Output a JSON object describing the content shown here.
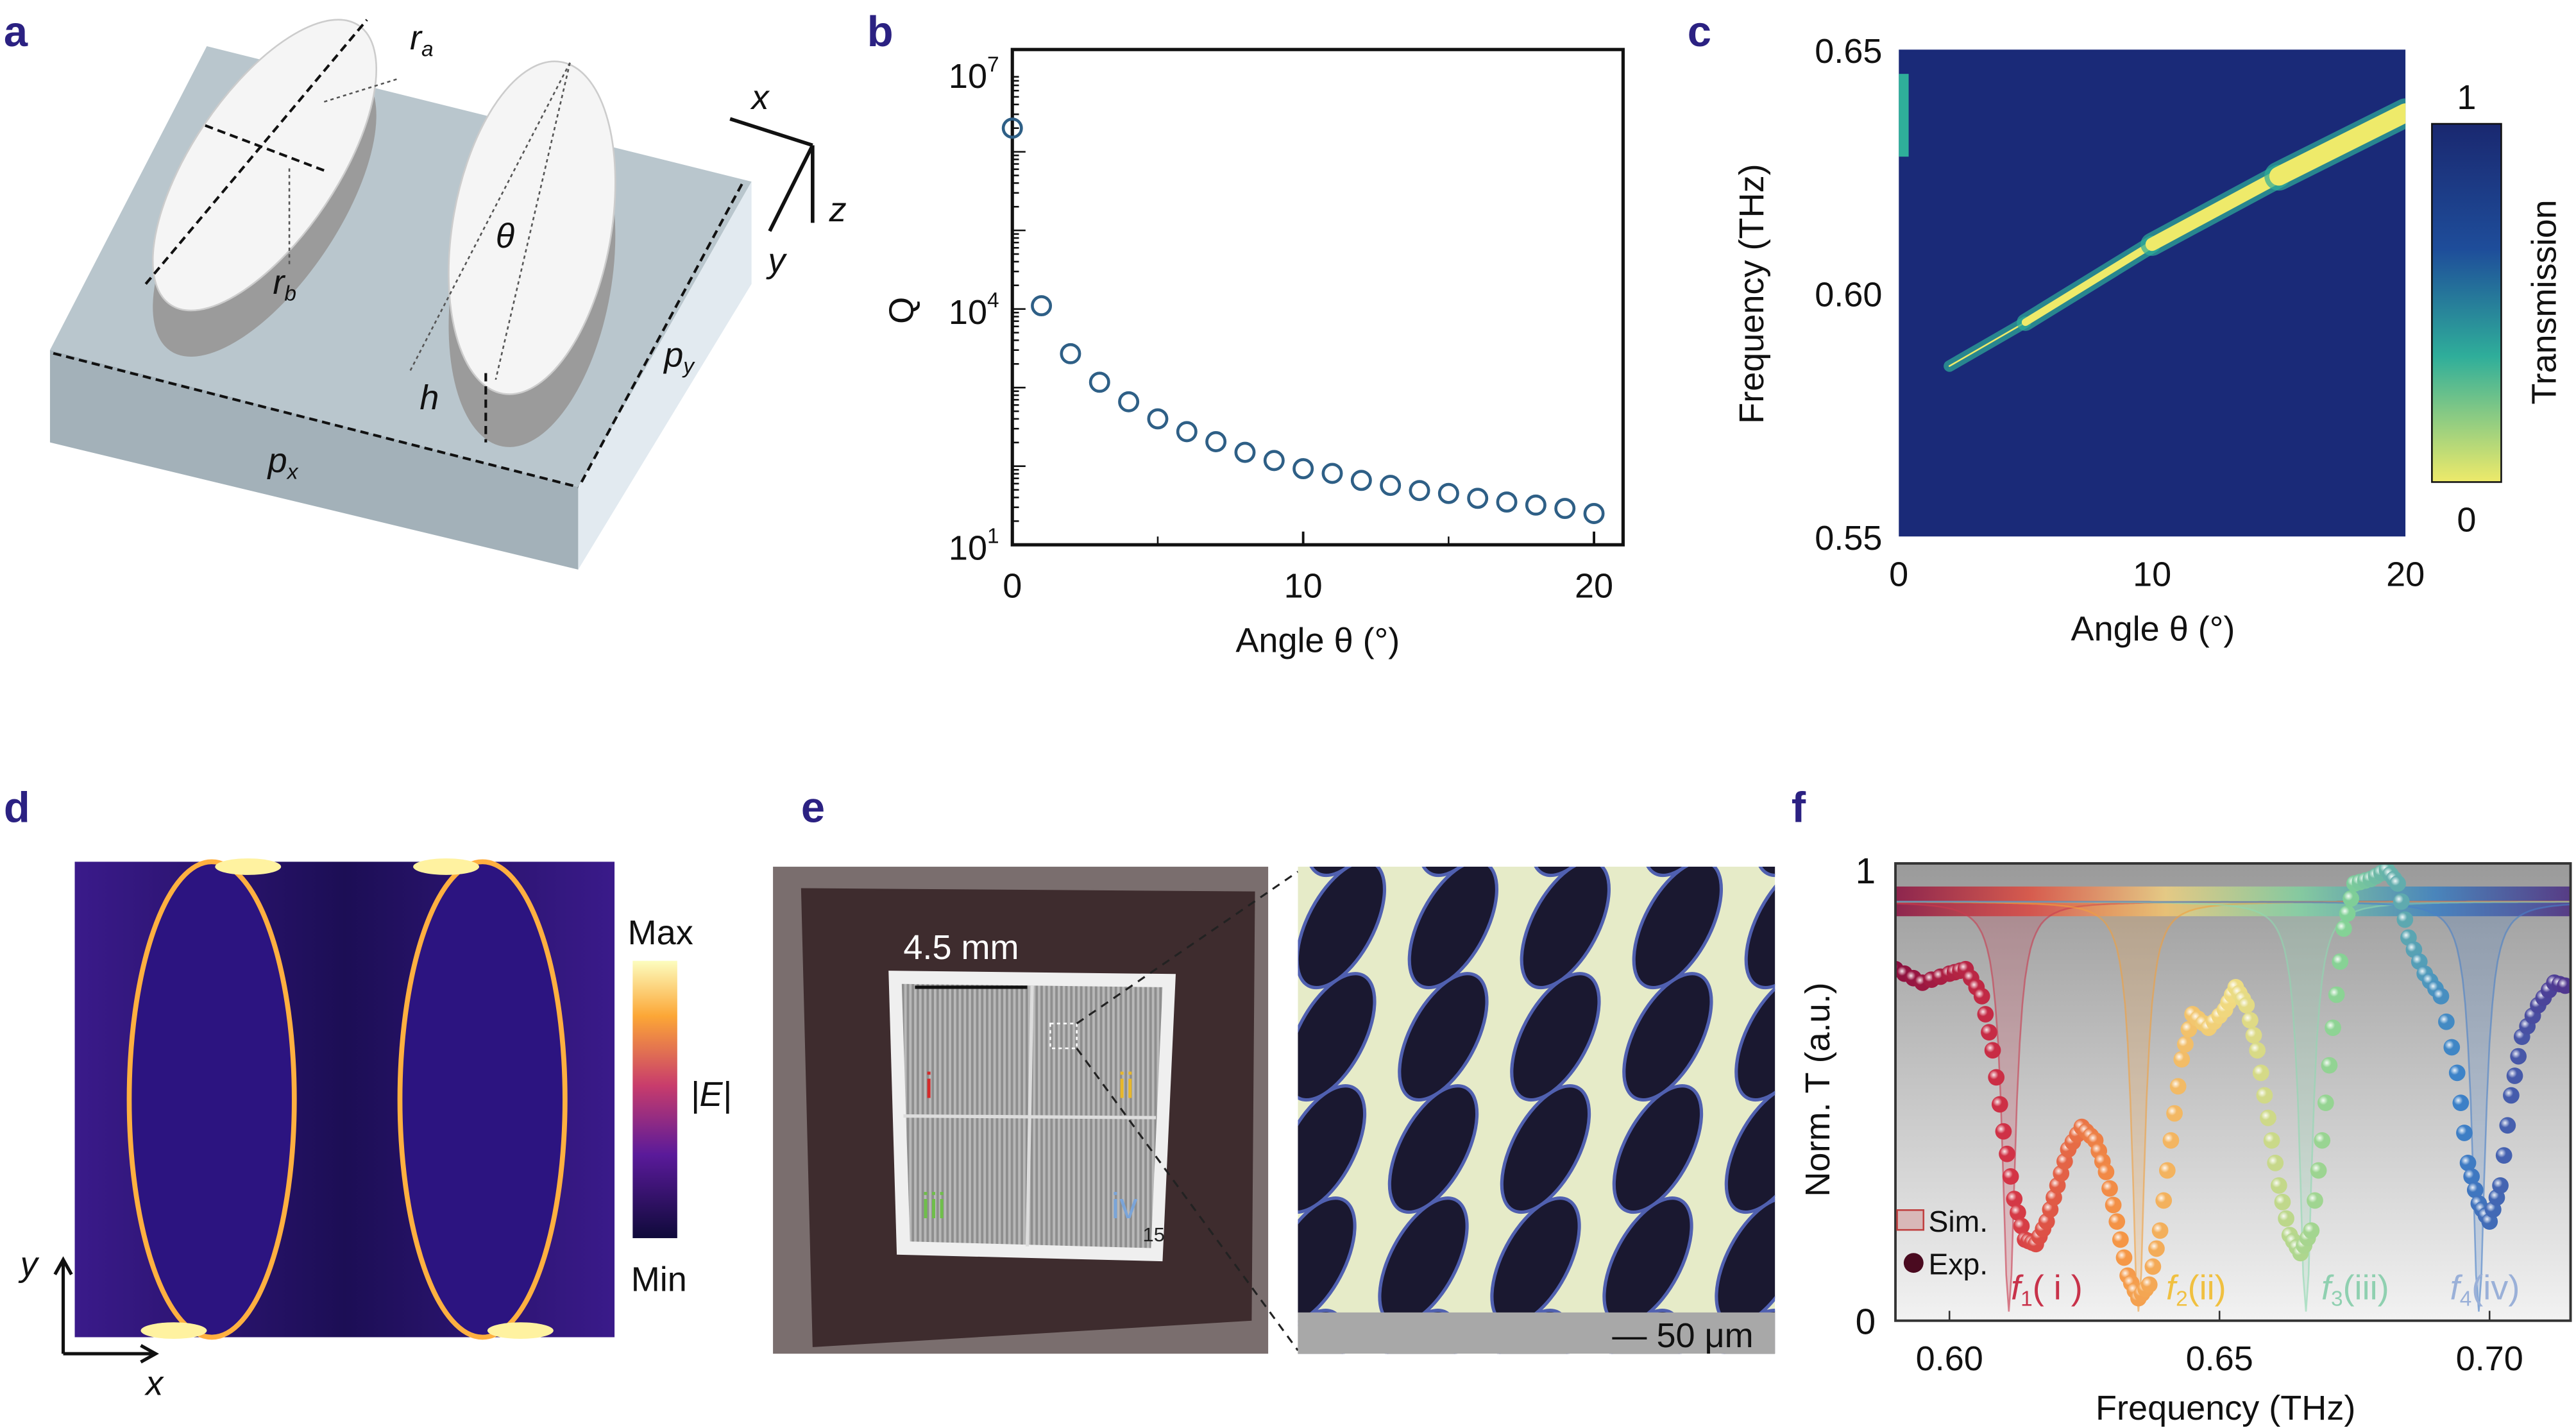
{
  "panels": {
    "a": {
      "label": "a",
      "ra": "r",
      "ra_sub": "a",
      "rb": "r",
      "rb_sub": "b",
      "theta": "θ",
      "h": "h",
      "px": "p",
      "px_sub": "x",
      "py": "p",
      "py_sub": "y",
      "axis_x": "x",
      "axis_y": "y",
      "axis_z": "z"
    },
    "b": {
      "label": "b"
    },
    "c": {
      "label": "c"
    },
    "d": {
      "label": "d",
      "cbar_max": "Max",
      "cbar_mid": "|E|",
      "cbar_min": "Min",
      "axis_x": "x",
      "axis_y": "y"
    },
    "e": {
      "label": "e",
      "size_label": "4.5 mm",
      "region_i": "i",
      "region_ii": "ii",
      "region_iii": "iii",
      "region_iv": "iv",
      "sample_number": "15",
      "scalebar": "— 50 μm",
      "region_colors": {
        "i": "#d42a2a",
        "ii": "#e8b82a",
        "iii": "#6fbf4a",
        "iv": "#7aa4d8"
      }
    },
    "f": {
      "label": "f",
      "legend_sim": "Sim.",
      "legend_exp": "Exp.",
      "modes": [
        {
          "f": "f",
          "sub": "1",
          "roman": "( i )",
          "color": "#c8324a"
        },
        {
          "f": "f",
          "sub": "2",
          "roman": "(ii)",
          "color": "#f0c040"
        },
        {
          "f": "f",
          "sub": "3",
          "roman": "(iii)",
          "color": "#8fd0b0"
        },
        {
          "f": "f",
          "sub": "4",
          "roman": "(iv)",
          "color": "#9ab0d8"
        }
      ]
    }
  },
  "chart_data": [
    {
      "panel": "b",
      "type": "scatter",
      "xlabel": "Angle θ (°)",
      "ylabel": "Q",
      "xlim": [
        0,
        21
      ],
      "ylim": [
        10,
        20000000
      ],
      "yscale": "log",
      "xticks": [
        "0",
        "10",
        "20"
      ],
      "yticks": [
        {
          "base": "10",
          "exp": "7"
        },
        {
          "base": "10",
          "exp": "4"
        },
        {
          "base": "10",
          "exp": "1"
        }
      ],
      "marker": "open-circle",
      "color": "#2e5f86",
      "x": [
        0,
        1,
        2,
        3,
        4,
        5,
        6,
        7,
        8,
        9,
        10,
        11,
        12,
        13,
        14,
        15,
        16,
        17,
        18,
        19,
        20
      ],
      "y": [
        2000000,
        11000,
        2700,
        1170,
        660,
        400,
        275,
        205,
        150,
        118,
        93,
        81,
        66,
        57,
        49,
        45,
        39,
        35,
        32,
        29,
        25
      ]
    },
    {
      "panel": "c",
      "type": "heatmap",
      "xlabel": "Angle θ (°)",
      "ylabel": "Frequency (THz)",
      "xlim": [
        0,
        20
      ],
      "ylim": [
        0.55,
        0.65
      ],
      "xticks": [
        "0",
        "10",
        "20"
      ],
      "yticks": [
        "0.55",
        "0.60",
        "0.65"
      ],
      "colorbar": {
        "label": "Transmission",
        "max": "1",
        "min": "0",
        "colors": [
          "#e8e86a",
          "#3fbf9a",
          "#1a5aa0",
          "#1a2870"
        ]
      },
      "background_value": 1,
      "resonance_band": {
        "angle": [
          2,
          5,
          10,
          15,
          20
        ],
        "frequency": [
          0.585,
          0.594,
          0.61,
          0.624,
          0.637
        ],
        "value": 0
      },
      "edge_feature": {
        "angle": 0,
        "frequency": 0.64
      }
    },
    {
      "panel": "f",
      "type": "line",
      "xlabel": "Frequency (THz)",
      "ylabel": "Norm. T (a.u.)",
      "xlim": [
        0.59,
        0.715
      ],
      "ylim": [
        0,
        1
      ],
      "xticks": [
        "0.60",
        "0.65",
        "0.70"
      ],
      "yticks": [
        "0",
        "1"
      ],
      "series": [
        {
          "name": "Sim.",
          "kind": "shaded-lorentzian-dips",
          "baseline": 0.93,
          "dips": [
            0.611,
            0.635,
            0.666,
            0.698
          ]
        },
        {
          "name": "Exp.",
          "kind": "spheres",
          "x": [
            0.59,
            0.595,
            0.6,
            0.603,
            0.606,
            0.608,
            0.61,
            0.612,
            0.614,
            0.616,
            0.618,
            0.62,
            0.622,
            0.6245,
            0.627,
            0.629,
            0.631,
            0.633,
            0.635,
            0.637,
            0.639,
            0.641,
            0.643,
            0.645,
            0.648,
            0.651,
            0.653,
            0.655,
            0.657,
            0.659,
            0.661,
            0.663,
            0.665,
            0.667,
            0.669,
            0.671,
            0.673,
            0.675,
            0.678,
            0.681,
            0.683,
            0.685,
            0.688,
            0.691,
            0.694,
            0.696,
            0.698,
            0.7,
            0.702,
            0.704,
            0.706,
            0.709,
            0.712,
            0.715
          ],
          "y": [
            0.78,
            0.75,
            0.77,
            0.78,
            0.72,
            0.6,
            0.42,
            0.27,
            0.18,
            0.17,
            0.22,
            0.3,
            0.38,
            0.43,
            0.4,
            0.33,
            0.22,
            0.1,
            0.05,
            0.08,
            0.2,
            0.4,
            0.58,
            0.68,
            0.65,
            0.69,
            0.74,
            0.7,
            0.6,
            0.45,
            0.3,
            0.19,
            0.15,
            0.2,
            0.4,
            0.65,
            0.87,
            0.97,
            0.98,
            1.0,
            0.97,
            0.85,
            0.77,
            0.72,
            0.55,
            0.35,
            0.26,
            0.22,
            0.3,
            0.5,
            0.63,
            0.7,
            0.75,
            0.74
          ]
        }
      ]
    }
  ]
}
